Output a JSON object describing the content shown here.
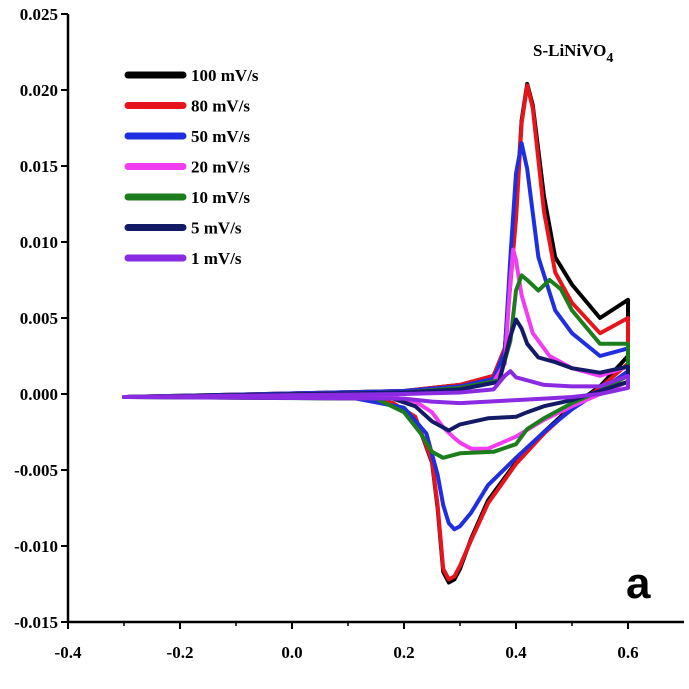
{
  "chart_data": {
    "type": "line",
    "title": "",
    "xlabel": "",
    "ylabel": "",
    "xlim": [
      -0.4,
      0.7
    ],
    "ylim": [
      -0.015,
      0.025
    ],
    "x_ticks": [
      -0.4,
      -0.2,
      0.0,
      0.2,
      0.4,
      0.6
    ],
    "x_tick_labels": [
      "-0.4",
      "-0.2",
      "0.0",
      "0.2",
      "0.4",
      "0.6"
    ],
    "y_ticks": [
      -0.015,
      -0.01,
      -0.005,
      0.0,
      0.005,
      0.01,
      0.015,
      0.02,
      0.025
    ],
    "y_tick_labels": [
      "-0.015",
      "-0.010",
      "-0.005",
      "0.000",
      "0.005",
      "0.010",
      "0.015",
      "0.020",
      "0.025"
    ],
    "grid": false,
    "legend_position": "top-left",
    "sample_label": {
      "main": "S-LiNiVO",
      "sub": "4"
    },
    "panel_label": "a",
    "series": [
      {
        "name": "100 mV/s",
        "color": "#000000",
        "x": [
          -0.3,
          0.2,
          0.3,
          0.36,
          0.38,
          0.4,
          0.41,
          0.42,
          0.43,
          0.45,
          0.47,
          0.5,
          0.55,
          0.6,
          0.6,
          0.55,
          0.5,
          0.45,
          0.4,
          0.35,
          0.32,
          0.3,
          0.29,
          0.28,
          0.27,
          0.26,
          0.25,
          0.22,
          0.18,
          0.1,
          -0.3
        ],
        "y": [
          -0.0002,
          0.0002,
          0.0006,
          0.0012,
          0.003,
          0.012,
          0.018,
          0.0204,
          0.019,
          0.013,
          0.009,
          0.0072,
          0.005,
          0.0062,
          0.0025,
          0.0005,
          -0.0008,
          -0.0025,
          -0.0045,
          -0.007,
          -0.0095,
          -0.0115,
          -0.0122,
          -0.0124,
          -0.0117,
          -0.0075,
          -0.0045,
          -0.0015,
          -0.0006,
          -0.0002,
          -0.0002
        ]
      },
      {
        "name": "80 mV/s",
        "color": "#e8141b",
        "x": [
          -0.3,
          0.2,
          0.3,
          0.36,
          0.38,
          0.4,
          0.41,
          0.42,
          0.43,
          0.45,
          0.47,
          0.5,
          0.55,
          0.6,
          0.6,
          0.55,
          0.5,
          0.45,
          0.4,
          0.35,
          0.32,
          0.3,
          0.29,
          0.28,
          0.27,
          0.26,
          0.25,
          0.22,
          0.18,
          0.1,
          -0.3
        ],
        "y": [
          -0.0002,
          0.0002,
          0.0006,
          0.0012,
          0.003,
          0.0115,
          0.0178,
          0.0203,
          0.0188,
          0.012,
          0.008,
          0.006,
          0.004,
          0.005,
          0.002,
          0.0004,
          -0.0009,
          -0.0026,
          -0.0046,
          -0.0072,
          -0.0096,
          -0.0113,
          -0.012,
          -0.0122,
          -0.0115,
          -0.0073,
          -0.0044,
          -0.0015,
          -0.0006,
          -0.0002,
          -0.0002
        ]
      },
      {
        "name": "50 mV/s",
        "color": "#1f2fe0",
        "x": [
          -0.3,
          0.2,
          0.3,
          0.36,
          0.38,
          0.39,
          0.4,
          0.41,
          0.42,
          0.44,
          0.47,
          0.5,
          0.55,
          0.6,
          0.6,
          0.55,
          0.5,
          0.45,
          0.4,
          0.35,
          0.32,
          0.3,
          0.29,
          0.28,
          0.27,
          0.26,
          0.24,
          0.2,
          0.1,
          -0.3
        ],
        "y": [
          -0.0002,
          0.0002,
          0.0005,
          0.001,
          0.0028,
          0.009,
          0.0145,
          0.0165,
          0.0148,
          0.009,
          0.0055,
          0.004,
          0.0025,
          0.003,
          0.0015,
          0.0002,
          -0.001,
          -0.0025,
          -0.0042,
          -0.006,
          -0.0078,
          -0.0087,
          -0.0089,
          -0.0085,
          -0.0073,
          -0.0053,
          -0.0026,
          -0.0009,
          -0.0002,
          -0.0002
        ]
      },
      {
        "name": "20 mV/s",
        "color": "#f23cf2",
        "x": [
          -0.3,
          0.2,
          0.3,
          0.36,
          0.38,
          0.39,
          0.395,
          0.4,
          0.41,
          0.43,
          0.46,
          0.5,
          0.55,
          0.6,
          0.6,
          0.55,
          0.5,
          0.45,
          0.4,
          0.35,
          0.32,
          0.3,
          0.29,
          0.27,
          0.25,
          0.22,
          0.18,
          -0.3
        ],
        "y": [
          -0.0002,
          0.0001,
          0.0004,
          0.0008,
          0.002,
          0.0075,
          0.0095,
          0.0088,
          0.0065,
          0.004,
          0.0025,
          0.0017,
          0.0012,
          0.0018,
          0.0008,
          0.0,
          -0.0008,
          -0.0017,
          -0.0028,
          -0.0036,
          -0.0036,
          -0.0032,
          -0.0029,
          -0.0022,
          -0.0012,
          -0.0005,
          -0.0002,
          -0.0002
        ]
      },
      {
        "name": "10 mV/s",
        "color": "#1c7d1c",
        "x": [
          -0.3,
          0.2,
          0.3,
          0.37,
          0.39,
          0.4,
          0.41,
          0.42,
          0.44,
          0.46,
          0.48,
          0.5,
          0.55,
          0.6,
          0.6,
          0.55,
          0.5,
          0.45,
          0.42,
          0.4,
          0.36,
          0.3,
          0.27,
          0.25,
          0.23,
          0.2,
          0.15,
          -0.3
        ],
        "y": [
          -0.0002,
          0.0001,
          0.0004,
          0.0009,
          0.0035,
          0.0068,
          0.0078,
          0.0075,
          0.0068,
          0.0075,
          0.0069,
          0.0055,
          0.0033,
          0.0033,
          0.0012,
          0.0002,
          -0.0006,
          -0.0016,
          -0.0023,
          -0.0033,
          -0.0038,
          -0.0039,
          -0.0042,
          -0.0038,
          -0.0026,
          -0.0012,
          -0.0003,
          -0.0002
        ]
      },
      {
        "name": "5 mV/s",
        "color": "#141b66",
        "x": [
          -0.3,
          0.2,
          0.3,
          0.37,
          0.39,
          0.4,
          0.41,
          0.42,
          0.44,
          0.47,
          0.5,
          0.55,
          0.6,
          0.6,
          0.55,
          0.5,
          0.45,
          0.42,
          0.4,
          0.35,
          0.3,
          0.28,
          0.25,
          0.22,
          0.18,
          -0.3
        ],
        "y": [
          -0.0002,
          0.0001,
          0.0003,
          0.0008,
          0.0038,
          0.0049,
          0.0043,
          0.0033,
          0.0024,
          0.0021,
          0.0017,
          0.0014,
          0.0018,
          0.0008,
          0.0002,
          -0.0004,
          -0.0008,
          -0.0012,
          -0.0015,
          -0.0016,
          -0.002,
          -0.0024,
          -0.0018,
          -0.0008,
          -0.0003,
          -0.0002
        ]
      },
      {
        "name": "1 mV/s",
        "color": "#8a2be2",
        "x": [
          -0.3,
          0.2,
          0.3,
          0.36,
          0.38,
          0.39,
          0.4,
          0.45,
          0.5,
          0.55,
          0.6,
          0.6,
          0.55,
          0.5,
          0.45,
          0.4,
          0.35,
          0.3,
          0.25,
          0.2,
          -0.3
        ],
        "y": [
          -0.0002,
          0.0,
          0.0001,
          0.0003,
          0.0012,
          0.0015,
          0.0011,
          0.0006,
          0.0005,
          0.0005,
          0.0012,
          0.0004,
          0.0,
          -0.0002,
          -0.0003,
          -0.0004,
          -0.0005,
          -0.0006,
          -0.0005,
          -0.0003,
          -0.0002
        ]
      }
    ]
  }
}
